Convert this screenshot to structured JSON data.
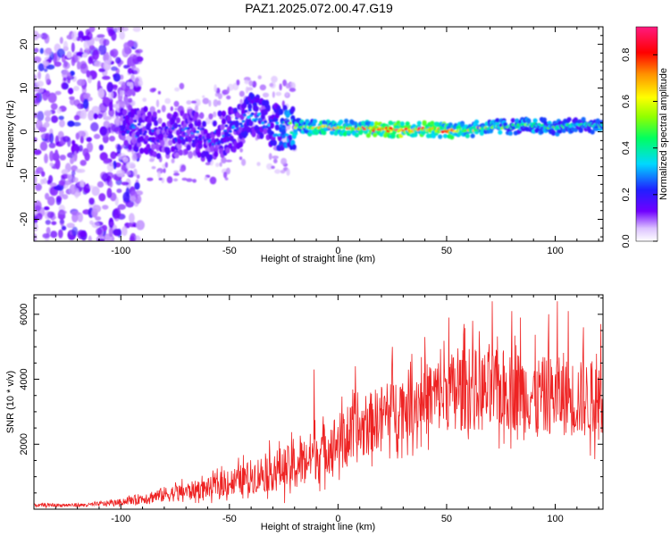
{
  "title": "PAZ1.2025.072.00.47.G19",
  "chart_data": [
    {
      "type": "heatmap",
      "name": "spectrogram",
      "xlabel": "Height of straight line (km)",
      "ylabel": "Frequency (Hz)",
      "xlim": [
        -140,
        122
      ],
      "ylim": [
        -25,
        24
      ],
      "xticks": [
        -100,
        -50,
        0,
        50,
        100
      ],
      "xtick_labels": [
        "-100",
        "-50",
        "0",
        "50",
        "100"
      ],
      "yticks": [
        -20,
        -10,
        0,
        10,
        20
      ],
      "ytick_labels": [
        "-20",
        "-10",
        "0",
        "10",
        "20"
      ],
      "colorbar": {
        "label": "Normalized spectral amplitude",
        "range": [
          0,
          0.92
        ],
        "ticks": [
          0.0,
          0.2,
          0.4,
          0.6,
          0.8
        ],
        "tick_labels": [
          "0.0",
          "0.2",
          "0.4",
          "0.6",
          "0.8"
        ],
        "colormap": "rainbow (white-purple-blue-cyan-green-yellow-orange-red-pink)"
      },
      "ridge": [
        {
          "x": -100,
          "freq": 1.5,
          "amp": 0.25
        },
        {
          "x": -90,
          "freq": 0.5,
          "amp": 0.25
        },
        {
          "x": -80,
          "freq": -1.0,
          "amp": 0.22
        },
        {
          "x": -70,
          "freq": 0.0,
          "amp": 0.25
        },
        {
          "x": -60,
          "freq": -1.5,
          "amp": 0.25
        },
        {
          "x": -50,
          "freq": 0.0,
          "amp": 0.27
        },
        {
          "x": -40,
          "freq": 4.0,
          "amp": 0.3
        },
        {
          "x": -30,
          "freq": 1.0,
          "amp": 0.3
        },
        {
          "x": -20,
          "freq": 1.2,
          "amp": 0.5
        },
        {
          "x": -10,
          "freq": 1.0,
          "amp": 0.62
        },
        {
          "x": 0,
          "freq": 1.0,
          "amp": 0.62
        },
        {
          "x": 10,
          "freq": 0.8,
          "amp": 0.72
        },
        {
          "x": 20,
          "freq": 0.5,
          "amp": 0.8
        },
        {
          "x": 30,
          "freq": 0.5,
          "amp": 0.85
        },
        {
          "x": 40,
          "freq": 0.7,
          "amp": 0.8
        },
        {
          "x": 50,
          "freq": 0.3,
          "amp": 0.75
        },
        {
          "x": 60,
          "freq": 0.5,
          "amp": 0.65
        },
        {
          "x": 70,
          "freq": 1.0,
          "amp": 0.55
        },
        {
          "x": 80,
          "freq": 1.2,
          "amp": 0.45
        },
        {
          "x": 90,
          "freq": 1.5,
          "amp": 0.5
        },
        {
          "x": 100,
          "freq": 1.0,
          "amp": 0.45
        },
        {
          "x": 110,
          "freq": 1.5,
          "amp": 0.4
        },
        {
          "x": 120,
          "freq": 1.5,
          "amp": 0.45
        }
      ],
      "noise_region": {
        "x_from": -140,
        "x_to": -97,
        "freq_from": -25,
        "freq_to": 24,
        "amp_range": [
          0.05,
          0.22
        ]
      }
    },
    {
      "type": "line",
      "name": "snr",
      "color": "#ee2222",
      "xlabel": "Height of straight line (km)",
      "ylabel": "SNR (10 * v/v)",
      "xlim": [
        -140,
        122
      ],
      "ylim": [
        0,
        6600
      ],
      "xticks": [
        -100,
        -50,
        0,
        50,
        100
      ],
      "xtick_labels": [
        "-100",
        "-50",
        "0",
        "50",
        "100"
      ],
      "yticks": [
        2000,
        4000,
        6000
      ],
      "ytick_labels": [
        "2000",
        "4000",
        "6000"
      ],
      "envelope": [
        {
          "x": -140,
          "mean": 120,
          "spread": 60
        },
        {
          "x": -115,
          "mean": 130,
          "spread": 70
        },
        {
          "x": -100,
          "mean": 220,
          "spread": 120
        },
        {
          "x": -80,
          "mean": 450,
          "spread": 300
        },
        {
          "x": -60,
          "mean": 650,
          "spread": 380
        },
        {
          "x": -45,
          "mean": 900,
          "spread": 600
        },
        {
          "x": -30,
          "mean": 1200,
          "spread": 800
        },
        {
          "x": -20,
          "mean": 1300,
          "spread": 900
        },
        {
          "x": -10,
          "mean": 1700,
          "spread": 1000
        },
        {
          "x": 0,
          "mean": 2100,
          "spread": 1100
        },
        {
          "x": 10,
          "mean": 2400,
          "spread": 1200
        },
        {
          "x": 20,
          "mean": 2900,
          "spread": 1200
        },
        {
          "x": 30,
          "mean": 3200,
          "spread": 1300
        },
        {
          "x": 40,
          "mean": 3400,
          "spread": 1400
        },
        {
          "x": 50,
          "mean": 3600,
          "spread": 1500
        },
        {
          "x": 60,
          "mean": 3700,
          "spread": 1600
        },
        {
          "x": 70,
          "mean": 3600,
          "spread": 1600
        },
        {
          "x": 80,
          "mean": 3700,
          "spread": 1600
        },
        {
          "x": 90,
          "mean": 3500,
          "spread": 1500
        },
        {
          "x": 100,
          "mean": 3500,
          "spread": 1500
        },
        {
          "x": 110,
          "mean": 3400,
          "spread": 1500
        },
        {
          "x": 122,
          "mean": 3300,
          "spread": 1500
        }
      ],
      "peaks": [
        {
          "x": -11,
          "y": 4300
        },
        {
          "x": 8,
          "y": 4400
        },
        {
          "x": 25,
          "y": 5000
        },
        {
          "x": 40,
          "y": 5300
        },
        {
          "x": 51,
          "y": 5900
        },
        {
          "x": 58,
          "y": 5700
        },
        {
          "x": 62,
          "y": 5800
        },
        {
          "x": 71,
          "y": 6400
        },
        {
          "x": 80,
          "y": 6100
        },
        {
          "x": 84,
          "y": 5900
        },
        {
          "x": 97,
          "y": 6000
        },
        {
          "x": 101,
          "y": 6400
        },
        {
          "x": 106,
          "y": 6100
        },
        {
          "x": 113,
          "y": 5600
        },
        {
          "x": 121,
          "y": 5700
        }
      ]
    }
  ]
}
